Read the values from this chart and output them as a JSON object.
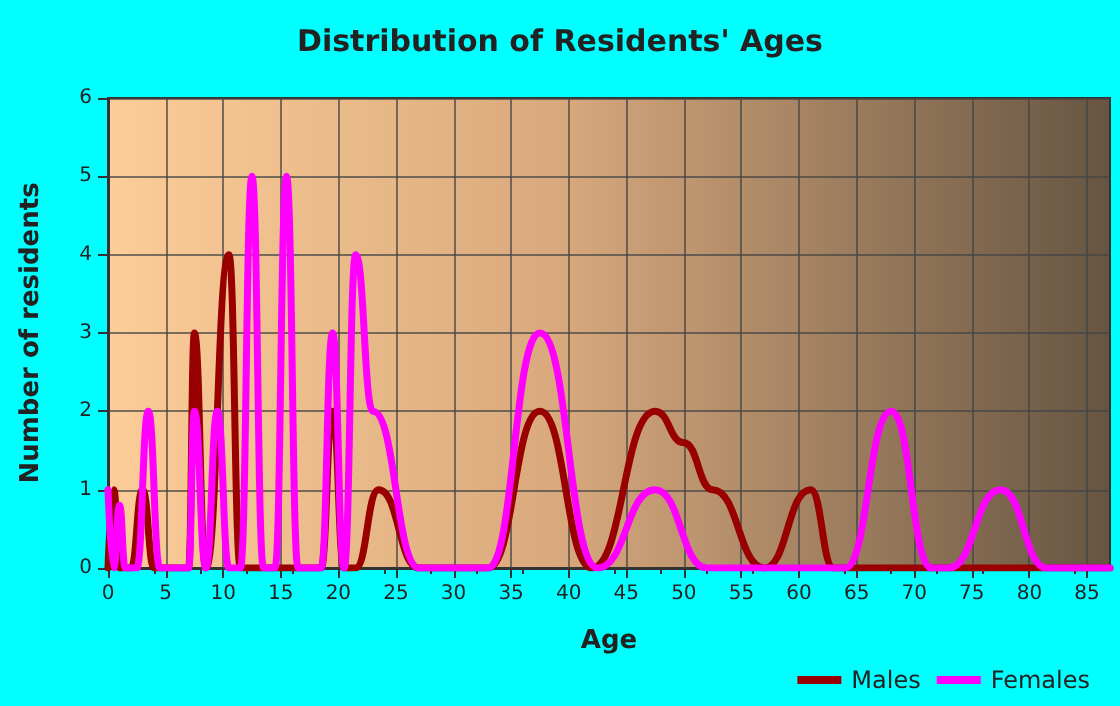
{
  "chart_data": {
    "type": "line",
    "title": "Distribution of Residents' Ages",
    "xlabel": "Age",
    "ylabel": "Number of residents",
    "xlim": [
      0,
      87
    ],
    "xticks": [
      0,
      5,
      10,
      15,
      20,
      25,
      30,
      35,
      40,
      45,
      50,
      55,
      60,
      65,
      70,
      75,
      80,
      85
    ],
    "ylim": [
      0,
      6
    ],
    "yticks": [
      0,
      1,
      2,
      3,
      4,
      5,
      6
    ],
    "grid": true,
    "legend": "bottom right",
    "marker": "none",
    "line_style": "solid",
    "series": [
      {
        "name": "Males",
        "color": "#990000",
        "x": [
          0,
          0.5,
          1,
          2,
          3,
          4,
          5,
          7,
          7.5,
          8.5,
          10.5,
          11.5,
          13,
          17,
          18.5,
          19.5,
          20.5,
          21.5,
          23.5,
          27,
          30,
          33,
          37.5,
          42,
          47.5,
          50,
          52.5,
          57,
          61,
          63,
          87
        ],
        "values": [
          0,
          1,
          0,
          0,
          1,
          0,
          0,
          0,
          3,
          0,
          4,
          0,
          0,
          0,
          0,
          2,
          0,
          0,
          1,
          0,
          0,
          0,
          2,
          0,
          2,
          1.6,
          1,
          0,
          1,
          0,
          0
        ]
      },
      {
        "name": "Females",
        "color": "#ff00ff",
        "x": [
          0,
          0.5,
          1,
          1.5,
          2.5,
          3.5,
          4.5,
          7,
          7.5,
          8.5,
          9.5,
          10.5,
          11.5,
          12.5,
          13.5,
          14.5,
          15.5,
          16.5,
          18.5,
          19.5,
          20.5,
          21.5,
          23,
          27,
          33,
          37.5,
          42.5,
          47.5,
          52,
          60,
          64,
          68,
          71.5,
          73,
          77.5,
          81.5,
          87
        ],
        "values": [
          1,
          0,
          0.8,
          0,
          0,
          2,
          0,
          0,
          2,
          0,
          2,
          0,
          0,
          5,
          0,
          0,
          5,
          0,
          0,
          3,
          0,
          4,
          2,
          0,
          0,
          3,
          0,
          1,
          0,
          0,
          0,
          2,
          0,
          0,
          1,
          0,
          0
        ]
      }
    ]
  }
}
